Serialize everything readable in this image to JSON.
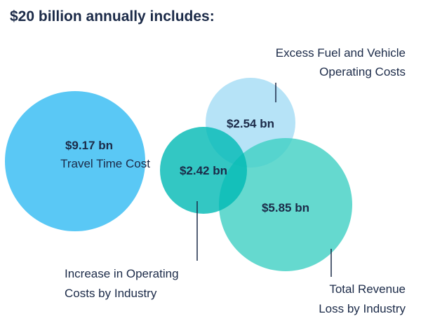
{
  "title": "$20 billion annually includes:",
  "bubbles": [
    {
      "value": "$9.17 bn",
      "label": "Travel Time Cost",
      "color": "#5ac8f5"
    },
    {
      "value": "$2.54 bn",
      "label_lines": [
        "Excess Fuel and Vehicle",
        "Operating Costs"
      ],
      "color": "#b2e2f7"
    },
    {
      "value": "$2.42 bn",
      "label_lines": [
        "Increase in Operating",
        "Costs by Industry"
      ],
      "color": "#00bfb9"
    },
    {
      "value": "$5.85 bn",
      "label_lines": [
        "Total Revenue",
        "Loss by Industry"
      ],
      "color": "#5dd6cc"
    }
  ],
  "text_color": "#1b2a48"
}
